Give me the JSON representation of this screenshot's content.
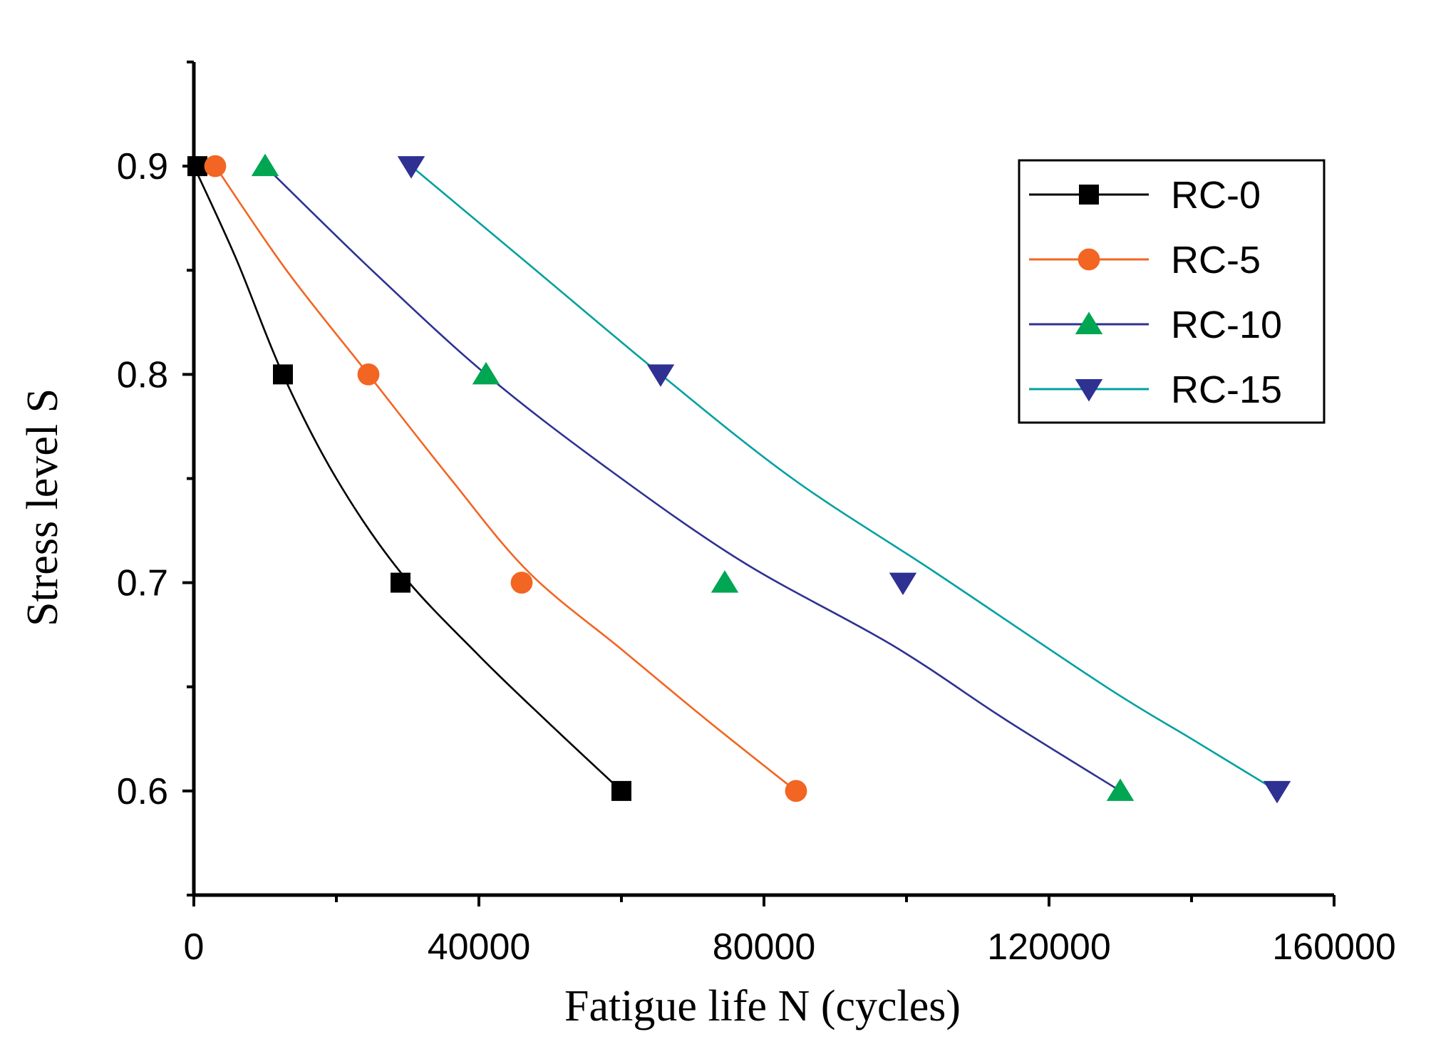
{
  "chart_data": {
    "type": "line",
    "title": "",
    "xlabel": "Fatigue life N (cycles)",
    "ylabel": "Stress level S",
    "xlim": [
      0,
      160000
    ],
    "ylim": [
      0.55,
      0.95
    ],
    "x_ticks": [
      0,
      40000,
      80000,
      120000,
      160000
    ],
    "x_tick_labels": [
      "0",
      "40000",
      "80000",
      "120000",
      "160000"
    ],
    "y_ticks": [
      0.6,
      0.7,
      0.8,
      0.9
    ],
    "y_tick_labels": [
      "0.6",
      "0.7",
      "0.8",
      "0.9"
    ],
    "grid": false,
    "legend_position": "top-right",
    "series": [
      {
        "name": "RC-0",
        "marker": "square",
        "color": "#000000",
        "marker_color": "#000000",
        "points": [
          [
            500,
            0.9
          ],
          [
            12500,
            0.8
          ],
          [
            29000,
            0.7
          ],
          [
            60000,
            0.6
          ]
        ],
        "fit": [
          [
            0,
            0.9
          ],
          [
            6000,
            0.855
          ],
          [
            12500,
            0.8
          ],
          [
            20000,
            0.75
          ],
          [
            29000,
            0.705
          ],
          [
            40000,
            0.665
          ],
          [
            50000,
            0.632
          ],
          [
            60000,
            0.6
          ]
        ]
      },
      {
        "name": "RC-5",
        "marker": "circle",
        "color": "#f26522",
        "marker_color": "#f26522",
        "points": [
          [
            3000,
            0.9
          ],
          [
            24500,
            0.8
          ],
          [
            46000,
            0.7
          ],
          [
            84500,
            0.6
          ]
        ],
        "fit": [
          [
            3000,
            0.9
          ],
          [
            13000,
            0.85
          ],
          [
            24500,
            0.8
          ],
          [
            36000,
            0.75
          ],
          [
            47000,
            0.705
          ],
          [
            60000,
            0.668
          ],
          [
            72000,
            0.634
          ],
          [
            84500,
            0.6
          ]
        ]
      },
      {
        "name": "RC-10",
        "marker": "triangle-up",
        "color": "#2e3192",
        "marker_color": "#00a651",
        "points": [
          [
            10000,
            0.9
          ],
          [
            41000,
            0.8
          ],
          [
            74500,
            0.7
          ],
          [
            130000,
            0.6
          ]
        ],
        "fit": [
          [
            10000,
            0.9
          ],
          [
            25000,
            0.85
          ],
          [
            41000,
            0.8
          ],
          [
            58000,
            0.755
          ],
          [
            77000,
            0.71
          ],
          [
            98000,
            0.67
          ],
          [
            114000,
            0.634
          ],
          [
            130000,
            0.6
          ]
        ]
      },
      {
        "name": "RC-15",
        "marker": "triangle-down",
        "color": "#00a0a0",
        "marker_color": "#2e3192",
        "points": [
          [
            30500,
            0.9
          ],
          [
            65500,
            0.8
          ],
          [
            99500,
            0.7
          ],
          [
            152000,
            0.6
          ]
        ],
        "fit": [
          [
            30500,
            0.9
          ],
          [
            48000,
            0.85
          ],
          [
            65500,
            0.8
          ],
          [
            84000,
            0.75
          ],
          [
            104000,
            0.705
          ],
          [
            128000,
            0.65
          ],
          [
            140000,
            0.625
          ],
          [
            152000,
            0.6
          ]
        ]
      }
    ]
  }
}
